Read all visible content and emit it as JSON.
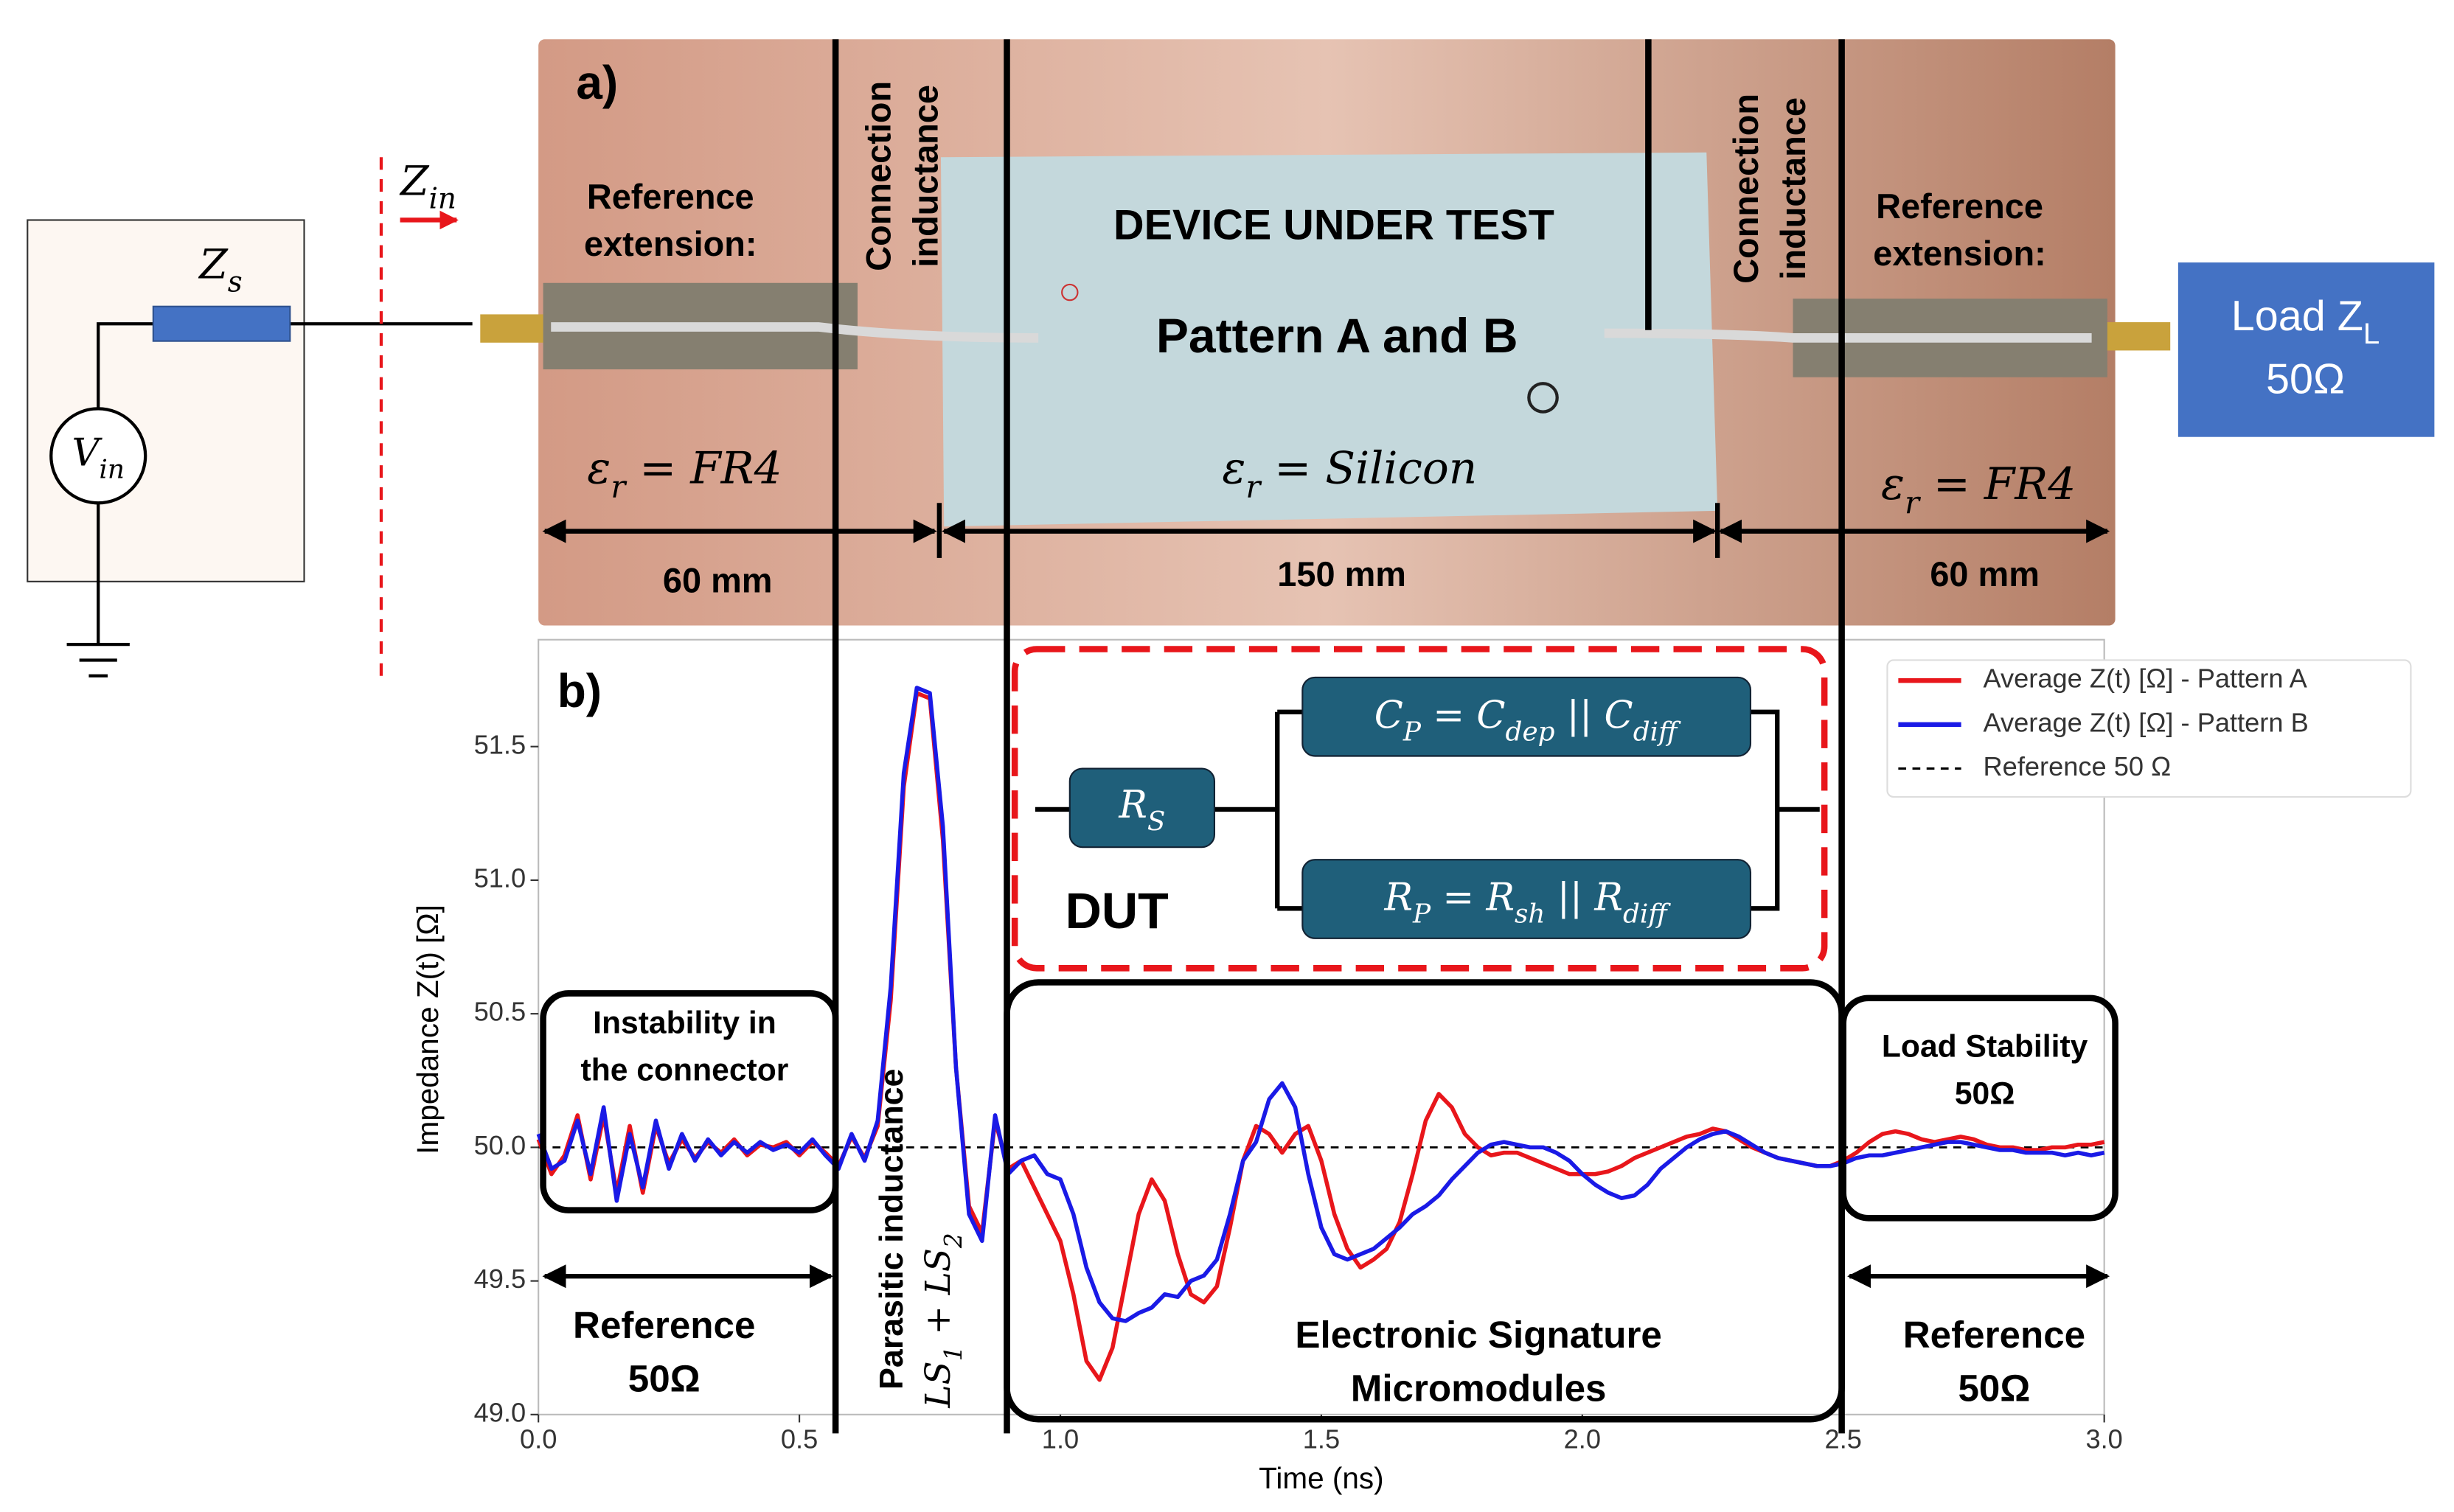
{
  "chart_data": {
    "type": "line",
    "xlabel": "Time (ns)",
    "ylabel": "Impedance Z(t) [Ω]",
    "xlim": [
      0,
      3
    ],
    "ylim": [
      49.0,
      51.9
    ],
    "xticks": [
      {
        "value": 0,
        "label": "0.0"
      },
      {
        "value": 0.5,
        "label": "0.5"
      },
      {
        "value": 1,
        "label": "1.0"
      },
      {
        "value": 1.5,
        "label": "1.5"
      },
      {
        "value": 2,
        "label": "2.0"
      },
      {
        "value": 2.5,
        "label": "2.5"
      },
      {
        "value": 3,
        "label": "3.0"
      }
    ],
    "yticks": [
      {
        "value": 49,
        "label": "49.0"
      },
      {
        "value": 49.5,
        "label": "49.5"
      },
      {
        "value": 50,
        "label": "50.0"
      },
      {
        "value": 50.5,
        "label": "50.5"
      },
      {
        "value": 51,
        "label": "51.0"
      },
      {
        "value": 51.5,
        "label": "51.5"
      }
    ],
    "grid": false,
    "legend": "upper right",
    "x": [
      0,
      0.025,
      0.05,
      0.075,
      0.1,
      0.125,
      0.15,
      0.175,
      0.2,
      0.225,
      0.25,
      0.275,
      0.3,
      0.325,
      0.35,
      0.375,
      0.4,
      0.425,
      0.45,
      0.475,
      0.5,
      0.525,
      0.55,
      0.575,
      0.6,
      0.625,
      0.65,
      0.675,
      0.7,
      0.725,
      0.75,
      0.775,
      0.8,
      0.825,
      0.85,
      0.875,
      0.9,
      0.925,
      0.95,
      0.975,
      1,
      1.025,
      1.05,
      1.075,
      1.1,
      1.125,
      1.15,
      1.175,
      1.2,
      1.225,
      1.25,
      1.275,
      1.3,
      1.325,
      1.35,
      1.375,
      1.4,
      1.425,
      1.45,
      1.475,
      1.5,
      1.525,
      1.55,
      1.575,
      1.6,
      1.625,
      1.65,
      1.675,
      1.7,
      1.725,
      1.75,
      1.775,
      1.8,
      1.825,
      1.85,
      1.875,
      1.9,
      1.925,
      1.95,
      1.975,
      2,
      2.025,
      2.05,
      2.075,
      2.1,
      2.125,
      2.15,
      2.175,
      2.2,
      2.225,
      2.25,
      2.275,
      2.3,
      2.325,
      2.35,
      2.375,
      2.4,
      2.425,
      2.45,
      2.475,
      2.5,
      2.525,
      2.55,
      2.575,
      2.6,
      2.625,
      2.65,
      2.675,
      2.7,
      2.725,
      2.75,
      2.775,
      2.8,
      2.825,
      2.85,
      2.875,
      2.9,
      2.925,
      2.95,
      2.975,
      3
    ],
    "series": [
      {
        "name": "Average Z(t) [Ω] - Pattern A",
        "color": "#e8161b",
        "values": [
          50.03,
          49.9,
          49.97,
          50.12,
          49.88,
          50.12,
          49.83,
          50.08,
          49.83,
          50.08,
          49.94,
          50.03,
          49.96,
          50.02,
          49.98,
          50.03,
          49.97,
          50.01,
          50.0,
          50.02,
          49.97,
          50.02,
          49.98,
          49.93,
          50.04,
          49.96,
          50.08,
          50.55,
          51.35,
          51.7,
          51.68,
          51.15,
          50.3,
          49.78,
          49.68,
          50.1,
          49.92,
          49.95,
          49.85,
          49.75,
          49.65,
          49.45,
          49.2,
          49.13,
          49.25,
          49.5,
          49.75,
          49.88,
          49.8,
          49.6,
          49.45,
          49.42,
          49.48,
          49.7,
          49.95,
          50.08,
          50.05,
          49.98,
          50.05,
          50.08,
          49.95,
          49.75,
          49.62,
          49.55,
          49.58,
          49.62,
          49.72,
          49.9,
          50.1,
          50.2,
          50.15,
          50.05,
          50.0,
          49.97,
          49.98,
          49.98,
          49.96,
          49.94,
          49.92,
          49.9,
          49.9,
          49.9,
          49.91,
          49.93,
          49.96,
          49.98,
          50.0,
          50.02,
          50.04,
          50.05,
          50.07,
          50.06,
          50.03,
          50.0,
          49.98,
          49.96,
          49.95,
          49.94,
          49.93,
          49.93,
          49.95,
          49.98,
          50.02,
          50.05,
          50.06,
          50.05,
          50.03,
          50.02,
          50.03,
          50.04,
          50.03,
          50.01,
          50.0,
          50.0,
          49.99,
          49.99,
          50.0,
          50.0,
          50.01,
          50.01,
          50.02
        ]
      },
      {
        "name": "Average Z(t) [Ω] - Pattern B",
        "color": "#1a1ae6",
        "values": [
          50.05,
          49.92,
          49.95,
          50.1,
          49.9,
          50.15,
          49.8,
          50.05,
          49.85,
          50.1,
          49.92,
          50.05,
          49.95,
          50.03,
          49.97,
          50.02,
          49.98,
          50.02,
          49.99,
          50.01,
          49.98,
          50.03,
          49.97,
          49.92,
          50.05,
          49.95,
          50.1,
          50.6,
          51.4,
          51.72,
          51.7,
          51.2,
          50.3,
          49.75,
          49.65,
          50.12,
          49.9,
          49.95,
          49.97,
          49.9,
          49.88,
          49.75,
          49.55,
          49.42,
          49.36,
          49.35,
          49.38,
          49.4,
          49.45,
          49.44,
          49.5,
          49.52,
          49.58,
          49.75,
          49.95,
          50.02,
          50.18,
          50.24,
          50.15,
          49.9,
          49.7,
          49.6,
          49.58,
          49.6,
          49.62,
          49.66,
          49.7,
          49.75,
          49.78,
          49.82,
          49.88,
          49.93,
          49.98,
          50.01,
          50.02,
          50.01,
          50.0,
          50.0,
          49.98,
          49.95,
          49.9,
          49.86,
          49.83,
          49.81,
          49.82,
          49.86,
          49.92,
          49.96,
          50.0,
          50.03,
          50.05,
          50.06,
          50.04,
          50.01,
          49.98,
          49.96,
          49.95,
          49.94,
          49.93,
          49.93,
          49.94,
          49.96,
          49.97,
          49.97,
          49.98,
          49.99,
          50.0,
          50.01,
          50.02,
          50.02,
          50.01,
          50.0,
          49.99,
          49.99,
          49.98,
          49.98,
          49.98,
          49.97,
          49.98,
          49.97,
          49.98
        ]
      }
    ],
    "reference": {
      "name": "Reference 50 Ω",
      "value": 50,
      "color": "#000000"
    }
  },
  "figure": {
    "panel_a": "a)",
    "panel_b": "b)",
    "zs": [
      {
        "t": "Z",
        "sub": "s"
      }
    ],
    "vin": [
      {
        "t": "V",
        "sub": "in"
      }
    ],
    "zin": [
      {
        "t": "Z",
        "sub": "in"
      }
    ],
    "ref_ext_left": [
      "Reference",
      "extension:"
    ],
    "conn_left": [
      "Connection",
      "inductance"
    ],
    "conn_right": [
      "Connection",
      "inductance"
    ],
    "dut_title": "DEVICE UNDER TEST",
    "pattern": "Pattern A and B",
    "ref_ext_right": [
      "Reference",
      "extension:"
    ],
    "load": [
      {
        "t": "Load "
      },
      {
        "t": "Z",
        "sub": "L"
      }
    ],
    "load_value": "50Ω",
    "eps_left": [
      {
        "t": "ε",
        "sub": "r"
      },
      {
        "t": " = FR4"
      }
    ],
    "eps_mid": [
      {
        "t": "ε",
        "sub": "r"
      },
      {
        "t": " = Silicon"
      }
    ],
    "eps_right": [
      {
        "t": "ε",
        "sub": "r"
      },
      {
        "t": " = FR4"
      }
    ],
    "len_left": "60 mm",
    "len_mid": "150 mm",
    "len_right": "60 mm",
    "rs": [
      {
        "t": "R",
        "sub": "S"
      }
    ],
    "cp": [
      {
        "t": "C",
        "sub": "P"
      },
      {
        "t": " = "
      },
      {
        "t": "C",
        "sub": "dep"
      },
      {
        "t": " || "
      },
      {
        "t": "C",
        "sub": "diff"
      }
    ],
    "rp": [
      {
        "t": "R",
        "sub": "P"
      },
      {
        "t": " = "
      },
      {
        "t": "R",
        "sub": "sh"
      },
      {
        "t": "  || "
      },
      {
        "t": "R",
        "sub": "diff"
      }
    ],
    "dut": "DUT",
    "instability": [
      "Instability in",
      "the connector"
    ],
    "ref_left": [
      "Reference",
      "50Ω"
    ],
    "parasitic": "Parasitic inductance",
    "ls": [
      {
        "t": "LS",
        "sub": "1"
      },
      {
        "t": " + "
      },
      {
        "t": "LS",
        "sub": "2"
      }
    ],
    "signature": [
      "Electronic Signature",
      "Micromodules"
    ],
    "load_stability": [
      "Load Stability",
      "50Ω"
    ],
    "ref_right": [
      "Reference",
      "50Ω"
    ]
  }
}
